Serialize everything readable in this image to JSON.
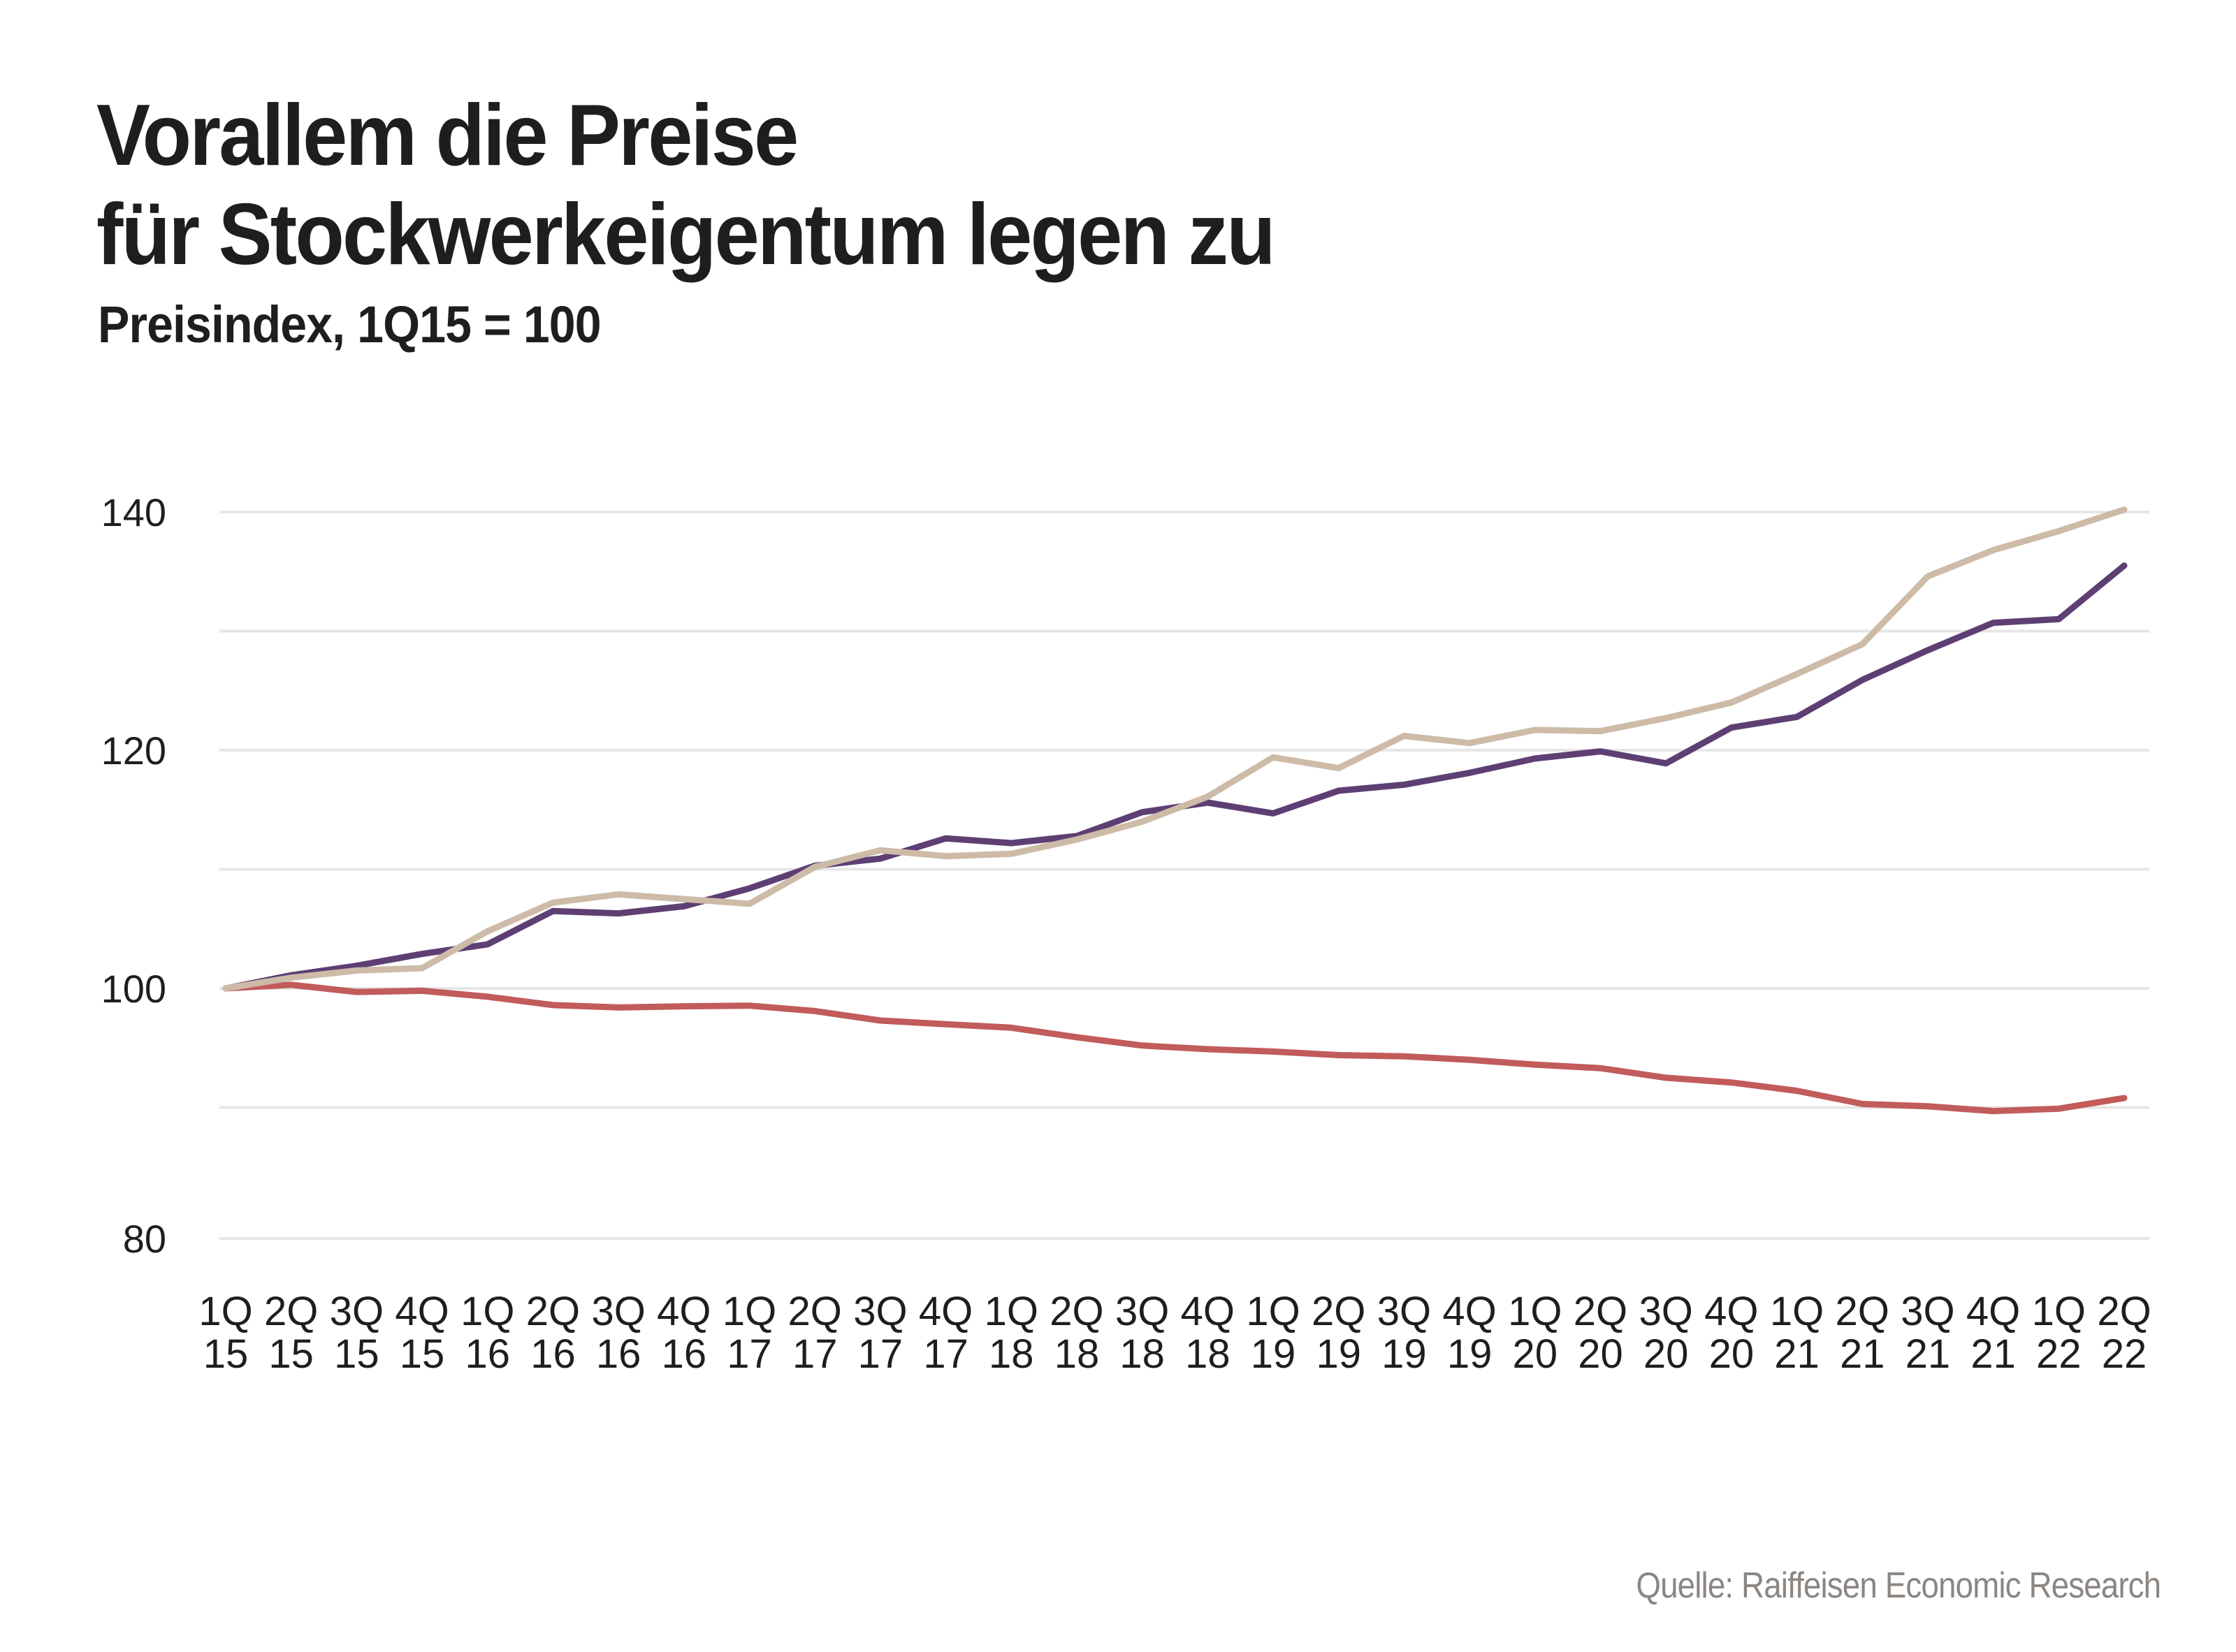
{
  "title_lines": [
    "Vorallem die Preise",
    "für Stockwerkeigentum legen zu"
  ],
  "subtitle": "Preisindex, 1Q15 = 100",
  "source": "Quelle: Raiffeisen Economic Research",
  "chart_data": {
    "type": "line",
    "title": "Vorallem die Preise für Stockwerkeigentum legen zu",
    "subtitle": "Preisindex, 1Q15 = 100",
    "xlabel": "",
    "ylabel": "",
    "ylim": [
      80,
      140
    ],
    "yticks": [
      80,
      90,
      100,
      110,
      120,
      130,
      140
    ],
    "ytick_labels": [
      "80",
      "",
      "100",
      "",
      "120",
      "",
      "140"
    ],
    "grid": true,
    "legend": "none",
    "categories": [
      [
        "1Q",
        "15"
      ],
      [
        "2Q",
        "15"
      ],
      [
        "3Q",
        "15"
      ],
      [
        "4Q",
        "15"
      ],
      [
        "1Q",
        "16"
      ],
      [
        "2Q",
        "16"
      ],
      [
        "3Q",
        "16"
      ],
      [
        "4Q",
        "16"
      ],
      [
        "1Q",
        "17"
      ],
      [
        "2Q",
        "17"
      ],
      [
        "3Q",
        "17"
      ],
      [
        "4Q",
        "17"
      ],
      [
        "1Q",
        "18"
      ],
      [
        "2Q",
        "18"
      ],
      [
        "3Q",
        "18"
      ],
      [
        "4Q",
        "18"
      ],
      [
        "1Q",
        "19"
      ],
      [
        "2Q",
        "19"
      ],
      [
        "3Q",
        "19"
      ],
      [
        "4Q",
        "19"
      ],
      [
        "1Q",
        "20"
      ],
      [
        "2Q",
        "20"
      ],
      [
        "3Q",
        "20"
      ],
      [
        "4Q",
        "20"
      ],
      [
        "1Q",
        "21"
      ],
      [
        "2Q",
        "21"
      ],
      [
        "3Q",
        "21"
      ],
      [
        "4Q",
        "21"
      ],
      [
        "1Q",
        "22"
      ],
      [
        "2Q",
        "22"
      ]
    ],
    "series": [
      {
        "name": "",
        "color": "#5e3f73",
        "values": [
          100,
          101.1,
          101.9,
          102.9,
          103.7,
          106.5,
          106.3,
          106.9,
          108.4,
          110.3,
          110.9,
          112.6,
          112.2,
          112.8,
          114.8,
          115.6,
          114.7,
          116.6,
          117.1,
          118.1,
          119.3,
          119.9,
          118.9,
          121.9,
          122.8,
          125.9,
          128.4,
          130.7,
          131.0,
          135.5
        ]
      },
      {
        "name": "",
        "color": "#cdbba8",
        "values": [
          100,
          100.9,
          101.5,
          101.7,
          104.8,
          107.2,
          107.9,
          107.5,
          107.1,
          110.2,
          111.6,
          111.1,
          111.3,
          112.5,
          114.0,
          116.1,
          119.4,
          118.5,
          121.2,
          120.6,
          121.7,
          121.6,
          122.7,
          124.0,
          126.4,
          128.9,
          134.6,
          136.8,
          138.4,
          140.2
        ]
      },
      {
        "name": "",
        "color": "#c25b5b",
        "values": [
          100,
          100.3,
          99.7,
          99.8,
          99.3,
          98.6,
          98.4,
          98.5,
          98.55,
          98.1,
          97.3,
          97.0,
          96.7,
          95.9,
          95.2,
          94.9,
          94.7,
          94.4,
          94.3,
          94.0,
          93.6,
          93.3,
          92.5,
          92.1,
          91.4,
          90.3,
          90.1,
          89.7,
          89.9,
          90.8
        ]
      }
    ]
  }
}
